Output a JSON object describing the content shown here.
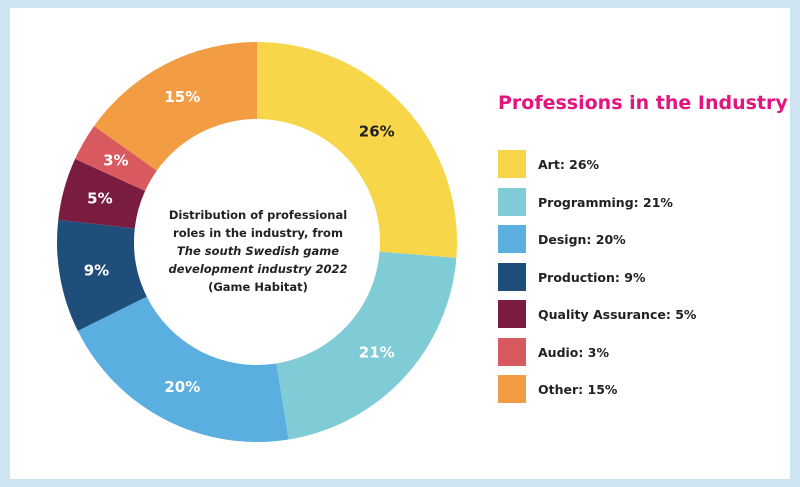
{
  "chart_data": {
    "type": "pie",
    "title": "Professions in the Industry",
    "center_text": {
      "line1": "Distribution of professional",
      "line2": "roles in the industry, from",
      "source_line1": "The south Swedish game",
      "source_line2": "development industry 2022",
      "publisher": "(Game Habitat)"
    },
    "slices": [
      {
        "label": "Art",
        "value": 26,
        "pct_label": "26%",
        "legend": "Art: 26%",
        "color": "#f7d64a",
        "text_color": "#222222"
      },
      {
        "label": "Programming",
        "value": 21,
        "pct_label": "21%",
        "legend": "Programming: 21%",
        "color": "#7fcbd6",
        "text_color": "#ffffff"
      },
      {
        "label": "Design",
        "value": 20,
        "pct_label": "20%",
        "legend": "Design: 20%",
        "color": "#5aaee0",
        "text_color": "#ffffff"
      },
      {
        "label": "Production",
        "value": 9,
        "pct_label": "9%",
        "legend": "Production: 9%",
        "color": "#1f4e7a",
        "text_color": "#ffffff"
      },
      {
        "label": "Quality Assurance",
        "value": 5,
        "pct_label": "5%",
        "legend": "Quality Assurance: 5%",
        "color": "#7a1c40",
        "text_color": "#ffffff"
      },
      {
        "label": "Audio",
        "value": 3,
        "pct_label": "3%",
        "legend": "Audio: 3%",
        "color": "#d85a5e",
        "text_color": "#ffffff"
      },
      {
        "label": "Other",
        "value": 15,
        "pct_label": "15%",
        "legend": "Other: 15%",
        "color": "#f29c44",
        "text_color": "#ffffff"
      }
    ],
    "legend_position": "right"
  }
}
